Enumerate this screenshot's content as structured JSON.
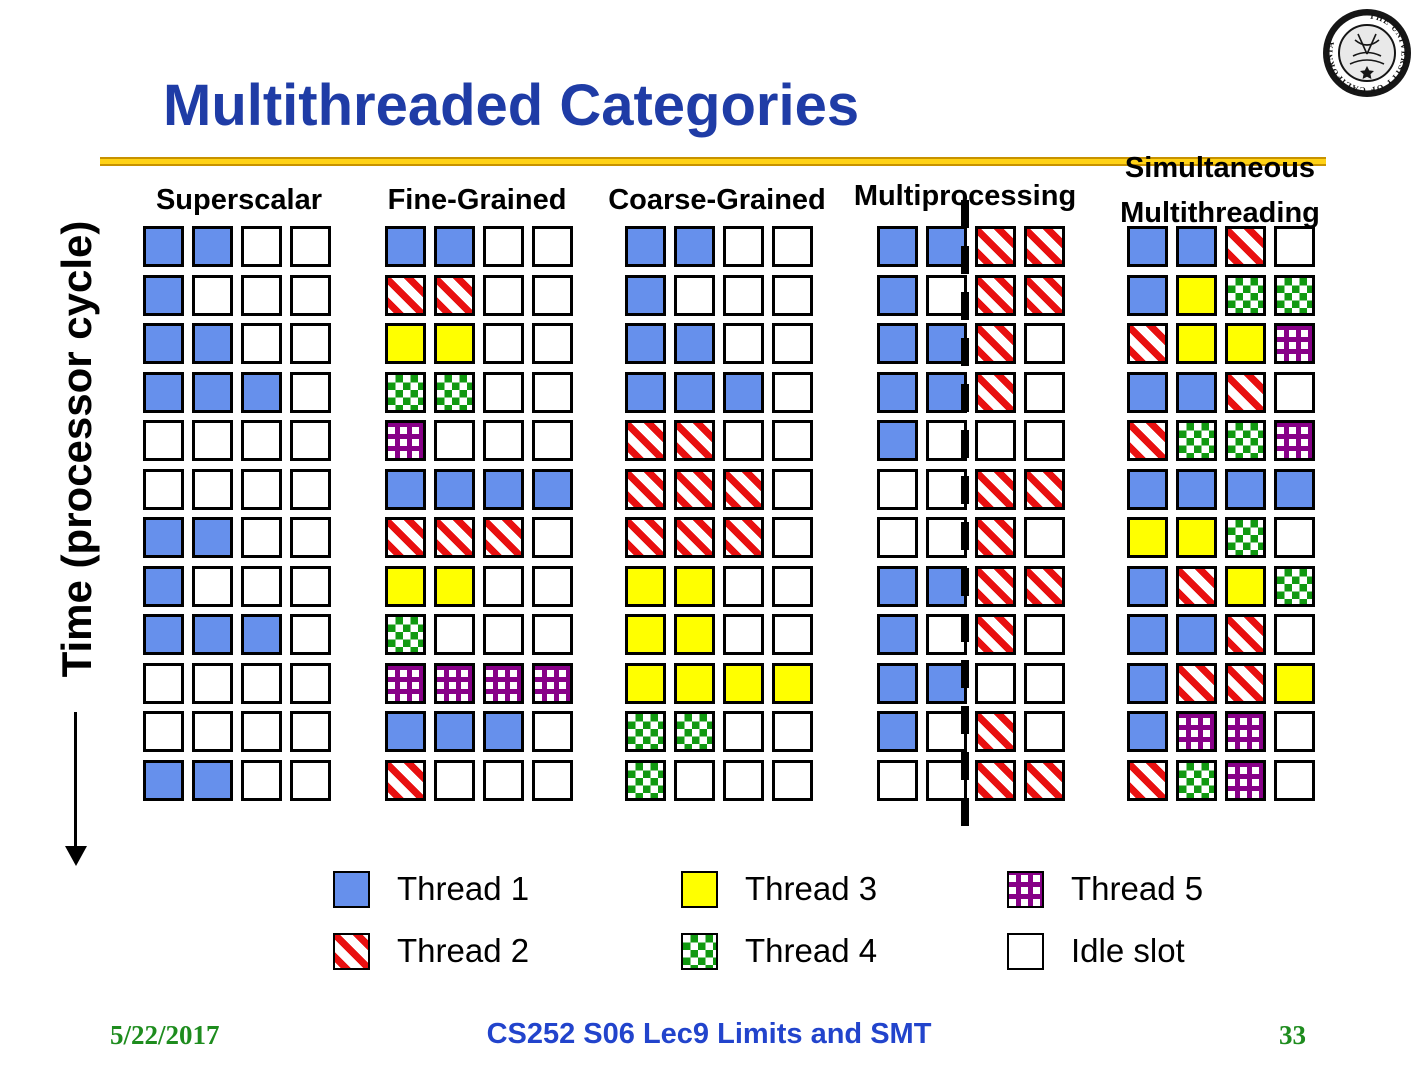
{
  "title": "Multithreaded Categories",
  "time_axis": {
    "label": "Time (processor cycle)"
  },
  "categories": [
    {
      "name": "Superscalar",
      "rows": [
        [
          1,
          1,
          0,
          0
        ],
        [
          1,
          0,
          0,
          0
        ],
        [
          1,
          1,
          0,
          0
        ],
        [
          1,
          1,
          1,
          0
        ],
        [
          0,
          0,
          0,
          0
        ],
        [
          0,
          0,
          0,
          0
        ],
        [
          1,
          1,
          0,
          0
        ],
        [
          1,
          0,
          0,
          0
        ],
        [
          1,
          1,
          1,
          0
        ],
        [
          0,
          0,
          0,
          0
        ],
        [
          0,
          0,
          0,
          0
        ],
        [
          1,
          1,
          0,
          0
        ]
      ]
    },
    {
      "name": "Fine-Grained",
      "rows": [
        [
          1,
          1,
          0,
          0
        ],
        [
          2,
          2,
          0,
          0
        ],
        [
          3,
          3,
          0,
          0
        ],
        [
          4,
          4,
          0,
          0
        ],
        [
          5,
          0,
          0,
          0
        ],
        [
          1,
          1,
          1,
          1
        ],
        [
          2,
          2,
          2,
          0
        ],
        [
          3,
          3,
          0,
          0
        ],
        [
          4,
          0,
          0,
          0
        ],
        [
          5,
          5,
          5,
          5
        ],
        [
          1,
          1,
          1,
          0
        ],
        [
          2,
          0,
          0,
          0
        ]
      ]
    },
    {
      "name": "Coarse-Grained",
      "rows": [
        [
          1,
          1,
          0,
          0
        ],
        [
          1,
          0,
          0,
          0
        ],
        [
          1,
          1,
          0,
          0
        ],
        [
          1,
          1,
          1,
          0
        ],
        [
          2,
          2,
          0,
          0
        ],
        [
          2,
          2,
          2,
          0
        ],
        [
          2,
          2,
          2,
          0
        ],
        [
          3,
          3,
          0,
          0
        ],
        [
          3,
          3,
          0,
          0
        ],
        [
          3,
          3,
          3,
          3
        ],
        [
          4,
          4,
          0,
          0
        ],
        [
          4,
          0,
          0,
          0
        ]
      ]
    },
    {
      "name": "Multiprocessing",
      "has_divider": true,
      "rows": [
        [
          1,
          1,
          2,
          2
        ],
        [
          1,
          0,
          2,
          2
        ],
        [
          1,
          1,
          2,
          0
        ],
        [
          1,
          1,
          2,
          0
        ],
        [
          1,
          0,
          0,
          0
        ],
        [
          0,
          0,
          2,
          2
        ],
        [
          0,
          0,
          2,
          0
        ],
        [
          1,
          1,
          2,
          2
        ],
        [
          1,
          0,
          2,
          0
        ],
        [
          1,
          1,
          0,
          0
        ],
        [
          1,
          0,
          2,
          0
        ],
        [
          0,
          0,
          2,
          2
        ]
      ]
    },
    {
      "name": "Simultaneous Multithreading",
      "name_lines": [
        "Simultaneous",
        "Multithreading"
      ],
      "rows": [
        [
          1,
          1,
          2,
          0
        ],
        [
          1,
          3,
          4,
          4
        ],
        [
          2,
          3,
          3,
          5
        ],
        [
          1,
          1,
          2,
          0
        ],
        [
          2,
          4,
          4,
          5
        ],
        [
          1,
          1,
          1,
          1
        ],
        [
          3,
          3,
          4,
          0
        ],
        [
          1,
          2,
          3,
          4
        ],
        [
          1,
          1,
          2,
          0
        ],
        [
          1,
          2,
          2,
          3
        ],
        [
          1,
          5,
          5,
          0
        ],
        [
          2,
          4,
          5,
          0
        ]
      ]
    }
  ],
  "slot_types": {
    "0": "idle",
    "1": "thread1",
    "2": "thread2",
    "3": "thread3",
    "4": "thread4",
    "5": "thread5"
  },
  "legend": [
    {
      "slot": 1,
      "label": "Thread 1",
      "pattern": "solid-blue",
      "color": "#6690ec"
    },
    {
      "slot": 2,
      "label": "Thread 2",
      "pattern": "red-diagonal-stripes",
      "color": "#e81010"
    },
    {
      "slot": 3,
      "label": "Thread 3",
      "pattern": "solid-yellow",
      "color": "#ffff00"
    },
    {
      "slot": 4,
      "label": "Thread 4",
      "pattern": "green-checkerboard",
      "color": "#119911"
    },
    {
      "slot": 5,
      "label": "Thread 5",
      "pattern": "purple-grid",
      "color": "#880088"
    },
    {
      "slot": 0,
      "label": "Idle slot",
      "pattern": "white",
      "color": "#ffffff"
    }
  ],
  "colors": {
    "title": "#1f3ca6",
    "gold_rule": "#ffd216",
    "footer_green": "#1e8c1e",
    "footer_blue": "#2244cc"
  },
  "footer": {
    "date": "5/22/2017",
    "course": "CS252 S06 Lec9 Limits and SMT",
    "page": "33"
  },
  "logo": {
    "name": "university-of-california-seal",
    "ring_text": "THE UNIVERSITY OF CALIFORNIA"
  }
}
